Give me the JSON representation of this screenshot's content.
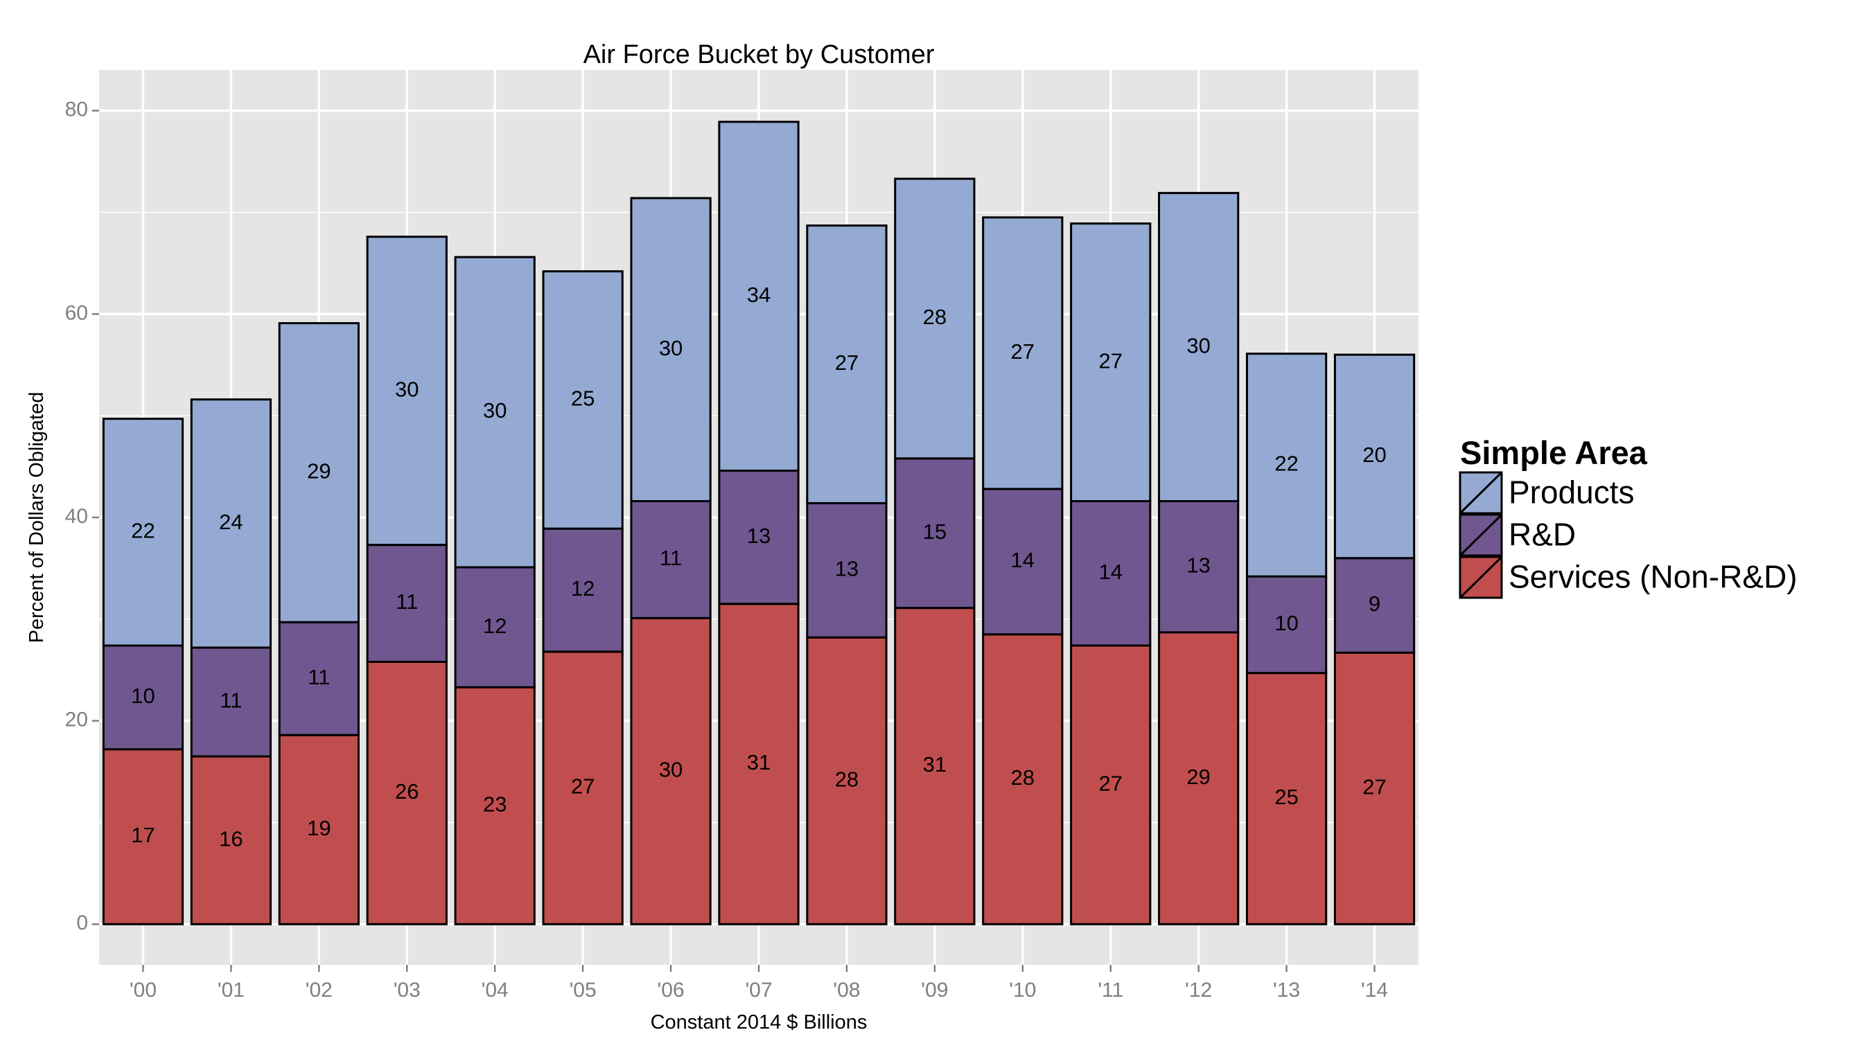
{
  "chart_data": {
    "type": "bar",
    "stacked": true,
    "title": "Air Force Bucket by Customer",
    "xlabel": "Constant 2014 $ Billions",
    "ylabel": "Percent of Dollars Obligated",
    "ylim": [
      -4,
      84
    ],
    "yticks": [
      0,
      20,
      40,
      60,
      80
    ],
    "grid": true,
    "legend_position": "right",
    "categories": [
      "'00",
      "'01",
      "'02",
      "'03",
      "'04",
      "'05",
      "'06",
      "'07",
      "'08",
      "'09",
      "'10",
      "'11",
      "'12",
      "'13",
      "'14"
    ],
    "series": [
      {
        "name": "Services (Non-R&D)",
        "color": "#c14e4e",
        "values": [
          17.2,
          16.5,
          18.6,
          25.8,
          23.3,
          26.8,
          30.1,
          31.5,
          28.2,
          31.1,
          28.5,
          27.4,
          28.7,
          24.7,
          26.7
        ],
        "labels": [
          "17",
          "16",
          "19",
          "26",
          "23",
          "27",
          "30",
          "31",
          "28",
          "31",
          "28",
          "27",
          "29",
          "25",
          "27"
        ]
      },
      {
        "name": "R&D",
        "color": "#70578f",
        "values": [
          10.2,
          10.7,
          11.1,
          11.5,
          11.8,
          12.1,
          11.5,
          13.1,
          13.2,
          14.7,
          14.3,
          14.2,
          12.9,
          9.5,
          9.3
        ],
        "labels": [
          "10",
          "11",
          "11",
          "11",
          "12",
          "12",
          "11",
          "13",
          "13",
          "15",
          "14",
          "14",
          "13",
          "10",
          "9"
        ]
      },
      {
        "name": "Products",
        "color": "#94aad2",
        "values": [
          22.3,
          24.4,
          29.4,
          30.3,
          30.5,
          25.3,
          29.8,
          34.3,
          27.3,
          27.5,
          26.7,
          27.3,
          30.3,
          21.9,
          20.0
        ],
        "labels": [
          "22",
          "24",
          "29",
          "30",
          "30",
          "25",
          "30",
          "34",
          "27",
          "28",
          "27",
          "27",
          "30",
          "22",
          "20"
        ]
      }
    ],
    "legend": {
      "title": "Simple Area",
      "entries": [
        "Products",
        "R&D",
        "Services (Non-R&D)"
      ]
    },
    "panel_background": "#e5e5e5",
    "grid_color": "#ffffff",
    "bar_border_color": "#000000"
  }
}
